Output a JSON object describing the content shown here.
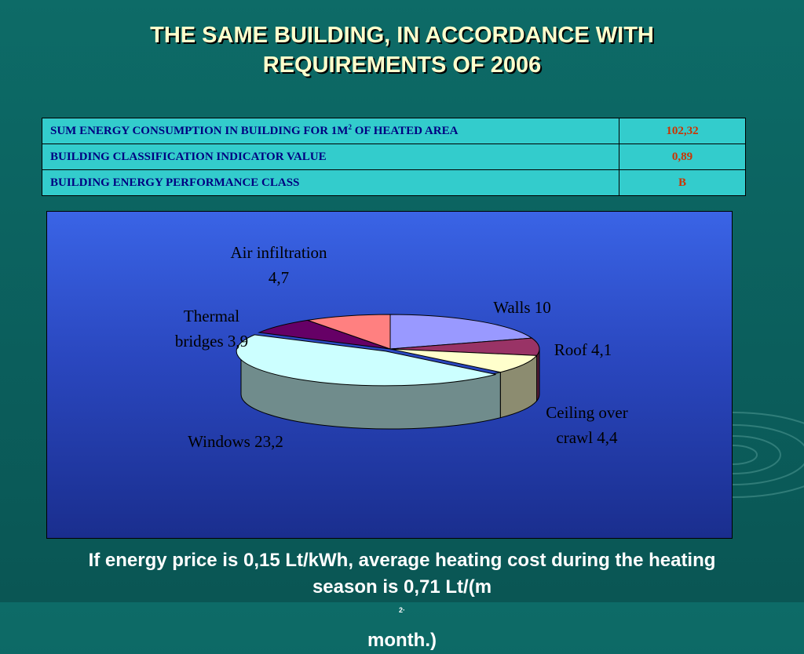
{
  "slide": {
    "title_line1": "THE SAME BUILDING, IN ACCORDANCE WITH",
    "title_line2": "REQUIREMENTS OF 2006",
    "footer_line1": "If energy price is 0,15 Lt/kWh, average heating cost during the heating",
    "footer_line2_prefix": "season is 0,71 Lt/(m",
    "footer_line2_sup": "2",
    "footer_line2_mid": "·",
    "footer_line2_suffix": "month.)"
  },
  "table": {
    "rows": [
      {
        "label_prefix": "SUM ENERGY CONSUMPTION IN BUILDING FOR 1M",
        "label_sup": "2",
        "label_suffix": " OF HEATED AREA",
        "value": "102,32"
      },
      {
        "label_prefix": "BUILDING CLASSIFICATION INDICATOR VALUE",
        "label_sup": "",
        "label_suffix": "",
        "value": "0,89"
      },
      {
        "label_prefix": "BUILDING ENERGY PERFORMANCE CLASS",
        "label_sup": "",
        "label_suffix": "",
        "value": "B"
      }
    ]
  },
  "chart_data": {
    "type": "pie",
    "title": "",
    "slices": [
      {
        "label_line1": "Walls 10",
        "label_line2": "",
        "name": "Walls",
        "value": 10,
        "color": "#9999ff"
      },
      {
        "label_line1": "Roof 4,1",
        "label_line2": "",
        "name": "Roof",
        "value": 4.1,
        "color": "#993366"
      },
      {
        "label_line1": "Ceiling over",
        "label_line2": "crawl 4,4",
        "name": "Ceiling over crawl",
        "value": 4.4,
        "color": "#ffffcc"
      },
      {
        "label_line1": "Windows 23,2",
        "label_line2": "",
        "name": "Windows",
        "value": 23.2,
        "color": "#ccffff"
      },
      {
        "label_line1": "Thermal",
        "label_line2": "bridges 3,9",
        "name": "Thermal bridges",
        "value": 3.9,
        "color": "#660066"
      },
      {
        "label_line1": "Air infiltration",
        "label_line2": "4,7",
        "name": "Air infiltration",
        "value": 4.7,
        "color": "#ff8080"
      }
    ]
  }
}
